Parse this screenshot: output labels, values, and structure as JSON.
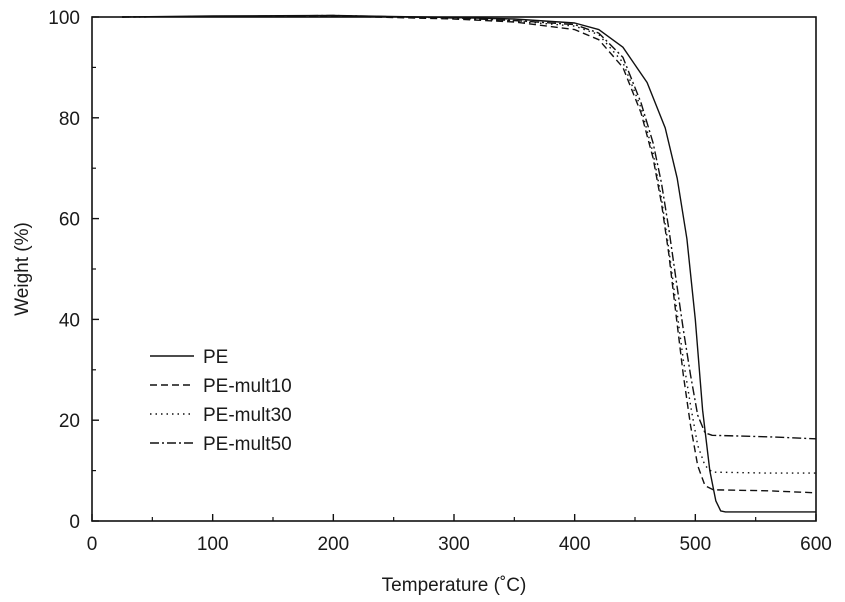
{
  "chart_data": {
    "type": "line",
    "xlabel": "Temperature (˚C)",
    "ylabel": "Weight (%)",
    "xlim": [
      0,
      600
    ],
    "ylim": [
      0,
      100
    ],
    "x_ticks": [
      0,
      100,
      200,
      300,
      400,
      500,
      600
    ],
    "y_ticks": [
      0,
      20,
      40,
      60,
      80,
      100
    ],
    "grid": false,
    "legend_position": "lower-left",
    "series": [
      {
        "name": "PE",
        "dash": "solid",
        "color": "#111111",
        "points": [
          [
            25,
            100
          ],
          [
            100,
            100.2
          ],
          [
            200,
            100.3
          ],
          [
            300,
            99.9
          ],
          [
            350,
            99.6
          ],
          [
            400,
            98.8
          ],
          [
            420,
            97.5
          ],
          [
            440,
            94
          ],
          [
            460,
            87
          ],
          [
            475,
            78
          ],
          [
            485,
            68
          ],
          [
            493,
            56
          ],
          [
            500,
            40
          ],
          [
            506,
            22
          ],
          [
            512,
            10
          ],
          [
            517,
            4
          ],
          [
            521,
            2
          ],
          [
            525,
            1.8
          ],
          [
            600,
            1.8
          ]
        ]
      },
      {
        "name": "PE-mult10",
        "dash": "7,4",
        "color": "#111111",
        "points": [
          [
            25,
            100
          ],
          [
            100,
            100.1
          ],
          [
            200,
            100.2
          ],
          [
            300,
            99.6
          ],
          [
            350,
            99
          ],
          [
            400,
            97.5
          ],
          [
            420,
            95.5
          ],
          [
            440,
            90
          ],
          [
            455,
            81
          ],
          [
            465,
            72
          ],
          [
            472,
            63
          ],
          [
            478,
            53
          ],
          [
            484,
            41
          ],
          [
            490,
            29
          ],
          [
            496,
            19
          ],
          [
            502,
            11
          ],
          [
            508,
            7
          ],
          [
            515,
            6.2
          ],
          [
            560,
            6
          ],
          [
            600,
            5.6
          ]
        ]
      },
      {
        "name": "PE-mult30",
        "dash": "1.5,4",
        "color": "#111111",
        "points": [
          [
            25,
            100
          ],
          [
            100,
            100.1
          ],
          [
            200,
            100.2
          ],
          [
            300,
            99.8
          ],
          [
            350,
            99.2
          ],
          [
            400,
            98.2
          ],
          [
            420,
            96.5
          ],
          [
            440,
            91
          ],
          [
            455,
            82
          ],
          [
            465,
            73
          ],
          [
            472,
            64
          ],
          [
            478,
            54
          ],
          [
            484,
            43
          ],
          [
            490,
            32
          ],
          [
            496,
            23
          ],
          [
            502,
            15
          ],
          [
            508,
            11
          ],
          [
            514,
            9.7
          ],
          [
            560,
            9.5
          ],
          [
            600,
            9.5
          ]
        ]
      },
      {
        "name": "PE-mult50",
        "dash": "9,3,2,3",
        "color": "#111111",
        "points": [
          [
            25,
            100
          ],
          [
            100,
            100.1
          ],
          [
            200,
            100.3
          ],
          [
            300,
            99.8
          ],
          [
            350,
            99.3
          ],
          [
            400,
            98.5
          ],
          [
            420,
            96.8
          ],
          [
            440,
            92
          ],
          [
            455,
            83
          ],
          [
            465,
            75
          ],
          [
            472,
            67
          ],
          [
            478,
            58
          ],
          [
            484,
            48
          ],
          [
            490,
            38
          ],
          [
            496,
            29
          ],
          [
            502,
            21
          ],
          [
            508,
            17.5
          ],
          [
            514,
            17
          ],
          [
            560,
            16.7
          ],
          [
            600,
            16.3
          ]
        ]
      }
    ]
  }
}
